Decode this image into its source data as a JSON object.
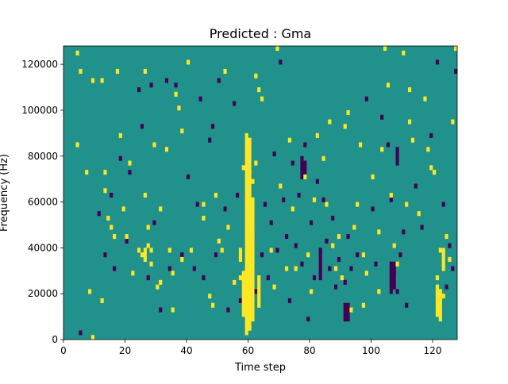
{
  "chart_data": {
    "type": "heatmap",
    "title": "Predicted : Gma",
    "xlabel": "Time step",
    "ylabel": "Frequency (Hz)",
    "xlim": [
      0,
      128
    ],
    "ylim": [
      0,
      128000
    ],
    "x_ticks": [
      0,
      20,
      40,
      60,
      80,
      100,
      120
    ],
    "x_tick_labels": [
      "0",
      "20",
      "40",
      "60",
      "80",
      "100",
      "120"
    ],
    "y_ticks": [
      0,
      20000,
      40000,
      60000,
      80000,
      100000,
      120000
    ],
    "y_tick_labels": [
      "0",
      "20000",
      "40000",
      "60000",
      "80000",
      "100000",
      "120000"
    ],
    "grid": false,
    "colormap": "viridis",
    "cell_size": {
      "time_steps": 1,
      "frequency_hz": 2000
    },
    "value_levels": [
      -1,
      0,
      1
    ],
    "colors": {
      "low": "#440154",
      "mid": "#21918c",
      "high": "#fde725"
    },
    "background_value": 0,
    "high_cells": [
      [
        4,
        124000
      ],
      [
        4,
        84000
      ],
      [
        5,
        116000
      ],
      [
        7,
        72000
      ],
      [
        8,
        20000
      ],
      [
        9,
        112000
      ],
      [
        9,
        0
      ],
      [
        12,
        112000
      ],
      [
        12,
        16000
      ],
      [
        13,
        64000
      ],
      [
        13,
        72000
      ],
      [
        14,
        52000
      ],
      [
        15,
        48000
      ],
      [
        16,
        44000
      ],
      [
        17,
        116000
      ],
      [
        18,
        88000
      ],
      [
        19,
        56000
      ],
      [
        20,
        44000
      ],
      [
        21,
        76000
      ],
      [
        22,
        28000
      ],
      [
        24,
        38000
      ],
      [
        25,
        36000
      ],
      [
        26,
        116000
      ],
      [
        26,
        62000
      ],
      [
        27,
        40000
      ],
      [
        27,
        48000
      ],
      [
        28,
        32000
      ],
      [
        28,
        38000
      ],
      [
        29,
        84000
      ],
      [
        30,
        22000
      ],
      [
        31,
        24000
      ],
      [
        31,
        56000
      ],
      [
        33,
        82000
      ],
      [
        34,
        38000
      ],
      [
        35,
        12000
      ],
      [
        35,
        28000
      ],
      [
        36,
        106000
      ],
      [
        37,
        100000
      ],
      [
        38,
        90000
      ],
      [
        38,
        34000
      ],
      [
        40,
        120000
      ],
      [
        41,
        38000
      ],
      [
        45,
        58000
      ],
      [
        45,
        52000
      ],
      [
        47,
        18000
      ],
      [
        48,
        14000
      ],
      [
        49,
        62000
      ],
      [
        50,
        42000
      ],
      [
        51,
        38000
      ],
      [
        52,
        116000
      ],
      [
        53,
        48000
      ],
      [
        55,
        24000
      ],
      [
        57,
        26000
      ],
      [
        58,
        74000
      ],
      [
        59,
        60000
      ],
      [
        60,
        72000
      ],
      [
        61,
        68000
      ],
      [
        62,
        76000
      ],
      [
        61,
        44000
      ],
      [
        60,
        32000
      ],
      [
        61,
        22000
      ],
      [
        60,
        10000
      ],
      [
        60,
        4000
      ],
      [
        62,
        114000
      ],
      [
        63,
        108000
      ],
      [
        64,
        104000
      ],
      [
        67,
        38000
      ],
      [
        68,
        22000
      ],
      [
        69,
        126000
      ],
      [
        70,
        66000
      ],
      [
        72,
        30000
      ],
      [
        73,
        86000
      ],
      [
        74,
        56000
      ],
      [
        75,
        30000
      ],
      [
        78,
        70000
      ],
      [
        79,
        36000
      ],
      [
        80,
        20000
      ],
      [
        81,
        60000
      ],
      [
        82,
        88000
      ],
      [
        84,
        78000
      ],
      [
        85,
        58000
      ],
      [
        86,
        94000
      ],
      [
        87,
        40000
      ],
      [
        88,
        30000
      ],
      [
        89,
        44000
      ],
      [
        90,
        26000
      ],
      [
        91,
        92000
      ],
      [
        92,
        98000
      ],
      [
        93,
        12000
      ],
      [
        94,
        48000
      ],
      [
        95,
        58000
      ],
      [
        96,
        84000
      ],
      [
        97,
        36000
      ],
      [
        98,
        28000
      ],
      [
        100,
        70000
      ],
      [
        102,
        46000
      ],
      [
        103,
        82000
      ],
      [
        104,
        126000
      ],
      [
        105,
        110000
      ],
      [
        106,
        62000
      ],
      [
        107,
        40000
      ],
      [
        108,
        32000
      ],
      [
        110,
        124000
      ],
      [
        111,
        58000
      ],
      [
        112,
        94000
      ],
      [
        113,
        86000
      ],
      [
        115,
        54000
      ],
      [
        117,
        104000
      ],
      [
        118,
        82000
      ],
      [
        119,
        74000
      ],
      [
        120,
        72000
      ],
      [
        121,
        26000
      ],
      [
        122,
        38000
      ],
      [
        123,
        18000
      ],
      [
        124,
        44000
      ],
      [
        125,
        34000
      ],
      [
        126,
        94000
      ],
      [
        127,
        126000
      ],
      [
        112,
        108000
      ],
      [
        102,
        20000
      ],
      [
        97,
        14000
      ]
    ],
    "high_ranges": [
      {
        "x": 59,
        "y_from": 2000,
        "y_to": 90000
      },
      {
        "x": 60,
        "y_from": 6000,
        "y_to": 88000
      },
      {
        "x": 61,
        "y_from": 8000,
        "y_to": 62000
      },
      {
        "x": 58,
        "y_from": 10000,
        "y_to": 30000
      },
      {
        "x": 26,
        "y_from": 34000,
        "y_to": 40000
      },
      {
        "x": 121,
        "y_from": 10000,
        "y_to": 24000
      },
      {
        "x": 122,
        "y_from": 8000,
        "y_to": 22000
      },
      {
        "x": 123,
        "y_from": 30000,
        "y_to": 40000
      },
      {
        "x": 57,
        "y_from": 34000,
        "y_to": 40000
      },
      {
        "x": 63,
        "y_from": 14000,
        "y_to": 28000
      }
    ],
    "low_cells": [
      [
        5,
        2000
      ],
      [
        11,
        54000
      ],
      [
        13,
        36000
      ],
      [
        15,
        62000
      ],
      [
        16,
        30000
      ],
      [
        18,
        78000
      ],
      [
        20,
        42000
      ],
      [
        21,
        72000
      ],
      [
        24,
        108000
      ],
      [
        25,
        92000
      ],
      [
        27,
        26000
      ],
      [
        28,
        110000
      ],
      [
        29,
        50000
      ],
      [
        31,
        12000
      ],
      [
        33,
        112000
      ],
      [
        34,
        30000
      ],
      [
        36,
        110000
      ],
      [
        38,
        36000
      ],
      [
        40,
        70000
      ],
      [
        42,
        30000
      ],
      [
        43,
        58000
      ],
      [
        44,
        104000
      ],
      [
        45,
        26000
      ],
      [
        47,
        86000
      ],
      [
        48,
        92000
      ],
      [
        49,
        36000
      ],
      [
        50,
        112000
      ],
      [
        52,
        56000
      ],
      [
        53,
        12000
      ],
      [
        55,
        102000
      ],
      [
        56,
        62000
      ],
      [
        57,
        16000
      ],
      [
        62,
        20000
      ],
      [
        64,
        36000
      ],
      [
        65,
        58000
      ],
      [
        66,
        26000
      ],
      [
        67,
        50000
      ],
      [
        68,
        80000
      ],
      [
        69,
        38000
      ],
      [
        70,
        120000
      ],
      [
        71,
        60000
      ],
      [
        72,
        44000
      ],
      [
        73,
        16000
      ],
      [
        74,
        76000
      ],
      [
        75,
        40000
      ],
      [
        76,
        62000
      ],
      [
        77,
        32000
      ],
      [
        78,
        84000
      ],
      [
        79,
        8000
      ],
      [
        80,
        50000
      ],
      [
        81,
        26000
      ],
      [
        82,
        68000
      ],
      [
        83,
        38000
      ],
      [
        84,
        60000
      ],
      [
        85,
        42000
      ],
      [
        86,
        30000
      ],
      [
        87,
        52000
      ],
      [
        88,
        22000
      ],
      [
        89,
        34000
      ],
      [
        91,
        24000
      ],
      [
        92,
        44000
      ],
      [
        93,
        30000
      ],
      [
        95,
        36000
      ],
      [
        98,
        104000
      ],
      [
        100,
        56000
      ],
      [
        101,
        32000
      ],
      [
        103,
        96000
      ],
      [
        105,
        84000
      ],
      [
        106,
        60000
      ],
      [
        107,
        28000
      ],
      [
        108,
        20000
      ],
      [
        109,
        36000
      ],
      [
        110,
        46000
      ],
      [
        111,
        14000
      ],
      [
        114,
        66000
      ],
      [
        116,
        48000
      ],
      [
        119,
        88000
      ],
      [
        121,
        120000
      ],
      [
        123,
        58000
      ],
      [
        124,
        22000
      ],
      [
        125,
        40000
      ],
      [
        126,
        30000
      ],
      [
        127,
        116000
      ]
    ],
    "low_ranges": [
      {
        "x": 77,
        "y_from": 70000,
        "y_to": 80000
      },
      {
        "x": 78,
        "y_from": 72000,
        "y_to": 78000
      },
      {
        "x": 91,
        "y_from": 8000,
        "y_to": 16000
      },
      {
        "x": 92,
        "y_from": 8000,
        "y_to": 16000
      },
      {
        "x": 106,
        "y_from": 20000,
        "y_to": 34000
      },
      {
        "x": 107,
        "y_from": 22000,
        "y_to": 34000
      },
      {
        "x": 83,
        "y_from": 26000,
        "y_to": 40000
      },
      {
        "x": 108,
        "y_from": 76000,
        "y_to": 84000
      }
    ]
  }
}
